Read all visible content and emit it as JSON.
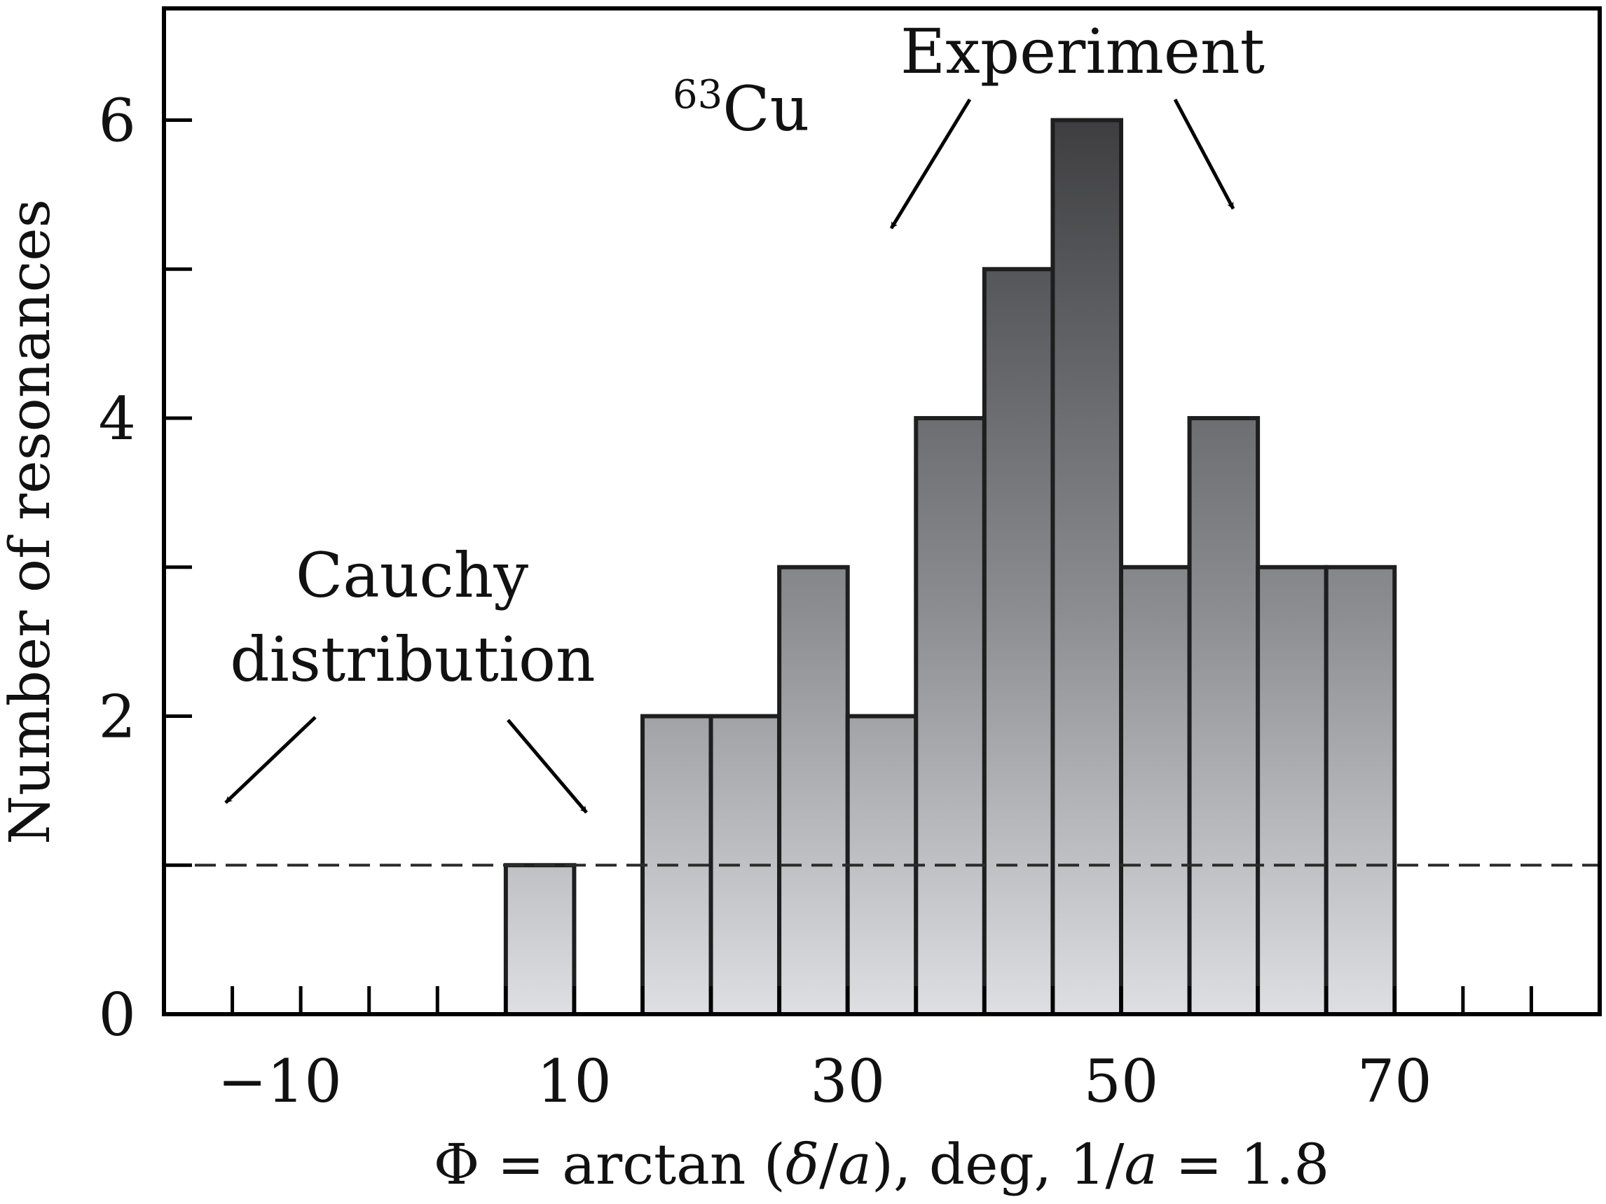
{
  "chart_data": {
    "type": "bar",
    "subtype": "histogram",
    "title": "",
    "xlabel": {
      "phi": "Φ",
      "eq": " = arctan (",
      "delta": "δ",
      "slash1": "/",
      "a1": "a",
      "mid": "), deg, 1/",
      "a2": "a",
      "tail": " = 1.8"
    },
    "ylabel": "Number of resonances",
    "xlim": [
      -20,
      85
    ],
    "ylim": [
      0,
      6.75
    ],
    "bin_width": 5,
    "bins": [
      {
        "from": 5,
        "to": 10,
        "count": 1
      },
      {
        "from": 15,
        "to": 20,
        "count": 2
      },
      {
        "from": 20,
        "to": 25,
        "count": 2
      },
      {
        "from": 25,
        "to": 30,
        "count": 3
      },
      {
        "from": 30,
        "to": 35,
        "count": 2
      },
      {
        "from": 35,
        "to": 40,
        "count": 4
      },
      {
        "from": 40,
        "to": 45,
        "count": 5
      },
      {
        "from": 45,
        "to": 50,
        "count": 6
      },
      {
        "from": 50,
        "to": 55,
        "count": 3
      },
      {
        "from": 55,
        "to": 60,
        "count": 4
      },
      {
        "from": 60,
        "to": 65,
        "count": 3
      },
      {
        "from": 65,
        "to": 70,
        "count": 3
      }
    ],
    "reference_line": {
      "name": "Cauchy distribution",
      "y": 1.0,
      "style": "dashed"
    },
    "x_ticks": [
      -15,
      -10,
      -5,
      0,
      5,
      10,
      15,
      20,
      25,
      30,
      35,
      40,
      45,
      50,
      55,
      60,
      65,
      70,
      75,
      80
    ],
    "x_tick_labels": [
      {
        "value": -10,
        "label": "−10"
      },
      {
        "value": 10,
        "label": "10"
      },
      {
        "value": 30,
        "label": "30"
      },
      {
        "value": 50,
        "label": "50"
      },
      {
        "value": 70,
        "label": "70"
      }
    ],
    "y_ticks": [
      0,
      1,
      2,
      3,
      4,
      5,
      6
    ],
    "y_tick_labels": [
      {
        "value": 0,
        "label": "0"
      },
      {
        "value": 2,
        "label": "2"
      },
      {
        "value": 4,
        "label": "4"
      },
      {
        "value": 6,
        "label": "6"
      }
    ],
    "annotations": {
      "isotope_mass": "63",
      "isotope_symbol": "Cu",
      "experiment": "Experiment",
      "cauchy_line1": "Cauchy",
      "cauchy_line2": "distribution"
    },
    "grid": false,
    "legend": "none",
    "colors": {
      "bar_top": "#3e3e41",
      "bar_mid": "#8b8d91",
      "bar_bottom": "#dedfe2",
      "bar_outline": "#1e1e1f",
      "axis": "#000000",
      "reference_line": "#2a2a2a"
    }
  }
}
